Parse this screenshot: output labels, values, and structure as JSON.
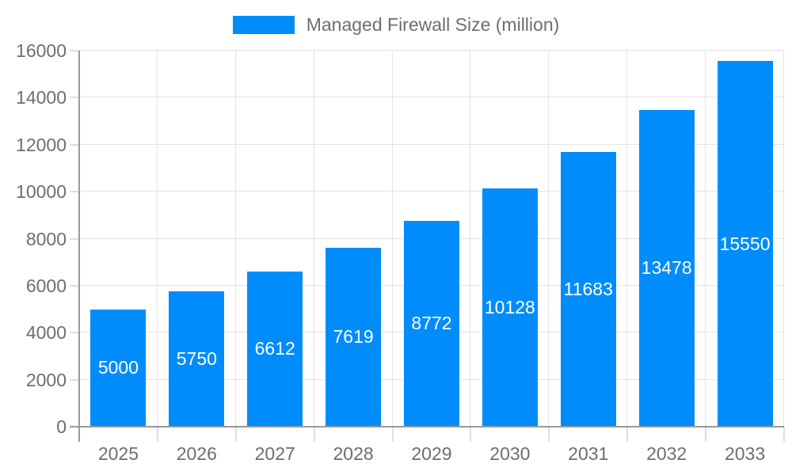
{
  "chart_data": {
    "type": "bar",
    "legend": "Managed Firewall Size (million)",
    "legend_position": "top-center",
    "categories": [
      "2025",
      "2026",
      "2027",
      "2028",
      "2029",
      "2030",
      "2031",
      "2032",
      "2033"
    ],
    "values": [
      5000,
      5750,
      6612,
      7619,
      8772,
      10128,
      11683,
      13478,
      15550
    ],
    "xlabel": "",
    "ylabel": "",
    "ylim": [
      0,
      16000
    ],
    "ytick_step": 2000,
    "grid": true,
    "bar_color": "#008cfa",
    "bar_label_color": "#ffffff",
    "axis_text_color": "#6e6e6e",
    "axis_line_color": "#9a9a9a",
    "gridline_color": "#e4e4e4"
  }
}
